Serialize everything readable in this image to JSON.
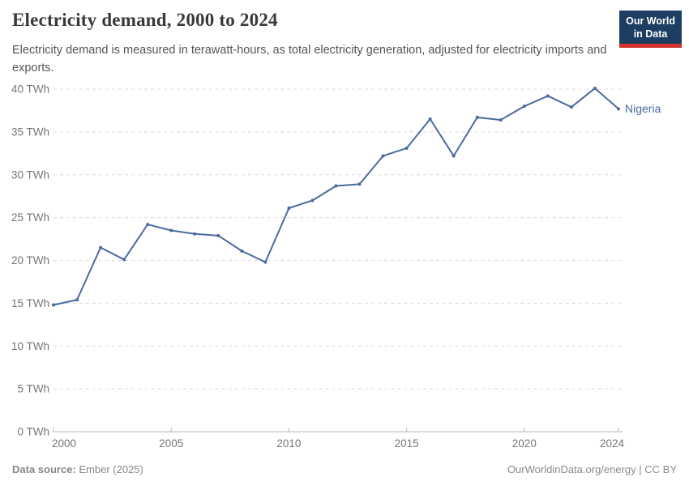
{
  "header": {
    "title": "Electricity demand, 2000 to 2024",
    "subtitle": "Electricity demand is measured in terawatt-hours, as total electricity generation, adjusted for electricity imports and exports.",
    "logo": {
      "line1": "Our World",
      "line2": "in Data"
    }
  },
  "chart_data": {
    "type": "line",
    "title": "Electricity demand, 2000 to 2024",
    "unit": "TWh",
    "x": [
      2000,
      2001,
      2002,
      2003,
      2004,
      2005,
      2006,
      2007,
      2008,
      2009,
      2010,
      2011,
      2012,
      2013,
      2014,
      2015,
      2016,
      2017,
      2018,
      2019,
      2020,
      2021,
      2022,
      2023,
      2024
    ],
    "series": [
      {
        "name": "Nigeria",
        "color": "#4a6a9f",
        "values": [
          14.8,
          15.4,
          21.5,
          20.1,
          24.2,
          23.5,
          23.1,
          22.9,
          21.1,
          19.8,
          26.1,
          27.0,
          28.7,
          28.9,
          32.2,
          33.1,
          36.5,
          32.2,
          36.7,
          36.4,
          38.0,
          39.2,
          37.9,
          40.1,
          37.7
        ]
      }
    ],
    "xlim": [
      2000,
      2024
    ],
    "ylim": [
      0,
      40
    ],
    "x_tick_values": [
      2000,
      2005,
      2010,
      2015,
      2020,
      2024
    ],
    "x_tick_labels": [
      "2000",
      "2005",
      "2010",
      "2015",
      "2020",
      "2024"
    ],
    "y_tick_values": [
      0,
      5,
      10,
      15,
      20,
      25,
      30,
      35,
      40
    ],
    "y_tick_labels": [
      "0 TWh",
      "5 TWh",
      "10 TWh",
      "15 TWh",
      "20 TWh",
      "25 TWh",
      "30 TWh",
      "35 TWh",
      "40 TWh"
    ],
    "grid": "horizontal-dashed",
    "legend": "end-of-line-label"
  },
  "footer": {
    "source_label": "Data source:",
    "source_value": " Ember (2025)",
    "attribution": "OurWorldinData.org/energy | CC BY"
  },
  "colors": {
    "line": "#4a6a9f",
    "logo_background": "#1d3d63",
    "logo_accent": "#d0342c"
  }
}
